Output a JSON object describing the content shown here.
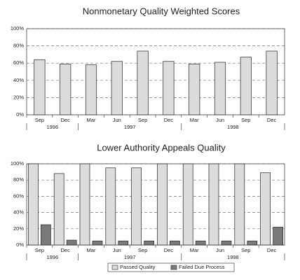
{
  "chart_data": [
    {
      "type": "bar",
      "title": "Nonmonetary Quality Weighted Scores",
      "categories": [
        "Sep",
        "Dec",
        "Mar",
        "Jun",
        "Sep",
        "Dec",
        "Mar",
        "Jun",
        "Sep",
        "Dec"
      ],
      "groups": [
        {
          "label": "1996",
          "span": 2
        },
        {
          "label": "1997",
          "span": 4
        },
        {
          "label": "1998",
          "span": 4
        }
      ],
      "values": [
        64,
        59,
        58,
        62,
        74,
        62,
        59,
        61,
        67,
        74
      ],
      "color": "#dcdcdc",
      "ylim": [
        0,
        100
      ],
      "yticks": [
        {
          "value": 0,
          "label": "0%"
        },
        {
          "value": 20,
          "label": "20%"
        },
        {
          "value": 40,
          "label": "40%"
        },
        {
          "value": 60,
          "label": "60%"
        },
        {
          "value": 80,
          "label": "80%"
        },
        {
          "value": 100,
          "label": "100%"
        }
      ],
      "grid": true
    },
    {
      "type": "bar",
      "title": "Lower Authority Appeals Quality",
      "categories": [
        "Sep",
        "Dec",
        "Mar",
        "Jun",
        "Sep",
        "Dec",
        "Mar",
        "Jun",
        "Sep",
        "Dec"
      ],
      "groups": [
        {
          "label": "1996",
          "span": 2
        },
        {
          "label": "1997",
          "span": 4
        },
        {
          "label": "1998",
          "span": 4
        }
      ],
      "series": [
        {
          "name": "Passed Quality",
          "color": "#dcdcdc",
          "values": [
            100,
            88,
            100,
            95,
            95,
            100,
            100,
            100,
            100,
            89
          ]
        },
        {
          "name": "Failed Due Process",
          "color": "#7a7a7a",
          "values": [
            25,
            6,
            5,
            5,
            5,
            5,
            5,
            5,
            5,
            22
          ]
        }
      ],
      "ylim": [
        0,
        100
      ],
      "yticks": [
        {
          "value": 0,
          "label": "0%"
        },
        {
          "value": 20,
          "label": "20%"
        },
        {
          "value": 40,
          "label": "40%"
        },
        {
          "value": 60,
          "label": "60%"
        },
        {
          "value": 80,
          "label": "80%"
        },
        {
          "value": 100,
          "label": "100%"
        }
      ],
      "grid": true,
      "legend": "bottom"
    }
  ]
}
